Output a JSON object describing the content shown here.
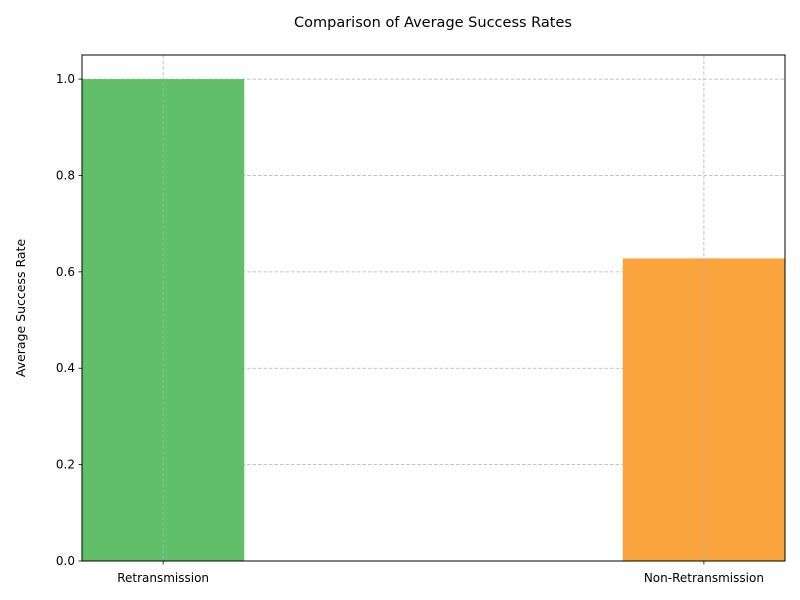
{
  "chart_data": {
    "type": "bar",
    "title": "Comparison of Average Success Rates",
    "xlabel": "",
    "ylabel": "Average Success Rate",
    "categories": [
      "Retransmission",
      "Non-Retransmission"
    ],
    "values": [
      1.0,
      0.628
    ],
    "colors": [
      "#62bf69",
      "#faa43e"
    ],
    "ylim": [
      0,
      1.05
    ],
    "yticks": [
      "0.0",
      "0.2",
      "0.4",
      "0.6",
      "0.8",
      "1.0"
    ],
    "grid": true,
    "grid_style": "dashed",
    "legend": false
  }
}
